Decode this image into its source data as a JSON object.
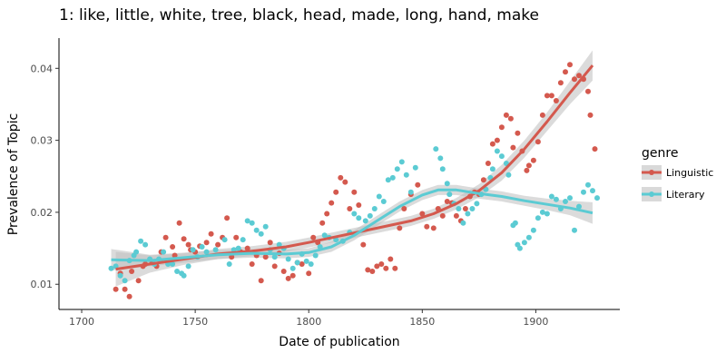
{
  "chart_data": {
    "type": "scatter",
    "title": "1: like, little, white, tree, black, head, made, long, hand, make",
    "xlabel": "Date of publication",
    "ylabel": "Prevalence of Topic",
    "xlim": [
      1690,
      1937
    ],
    "ylim": [
      0.0065,
      0.0442
    ],
    "x_ticks": [
      1700,
      1750,
      1800,
      1850,
      1900
    ],
    "y_ticks": [
      0.01,
      0.02,
      0.03,
      0.04
    ],
    "y_tick_labels": [
      "0.01",
      "0.02",
      "0.03",
      "0.04"
    ],
    "grid": false,
    "legend": {
      "title": "genre",
      "position": "right"
    },
    "colors": {
      "Linguistic": "#d4594e",
      "Literary": "#5bcbd3",
      "band": "#bdbdbd"
    },
    "series": [
      {
        "name": "Linguistic",
        "points": [
          [
            1715,
            0.0093
          ],
          [
            1717,
            0.0115
          ],
          [
            1719,
            0.0093
          ],
          [
            1721,
            0.0083
          ],
          [
            1722,
            0.0118
          ],
          [
            1725,
            0.0105
          ],
          [
            1727,
            0.0125
          ],
          [
            1728,
            0.0128
          ],
          [
            1731,
            0.013
          ],
          [
            1733,
            0.0125
          ],
          [
            1735,
            0.0145
          ],
          [
            1737,
            0.0165
          ],
          [
            1740,
            0.0152
          ],
          [
            1741,
            0.014
          ],
          [
            1743,
            0.0185
          ],
          [
            1745,
            0.0163
          ],
          [
            1747,
            0.0155
          ],
          [
            1748,
            0.0148
          ],
          [
            1750,
            0.0145
          ],
          [
            1752,
            0.0153
          ],
          [
            1755,
            0.0158
          ],
          [
            1757,
            0.017
          ],
          [
            1760,
            0.0155
          ],
          [
            1762,
            0.0165
          ],
          [
            1764,
            0.0192
          ],
          [
            1766,
            0.0138
          ],
          [
            1768,
            0.0165
          ],
          [
            1770,
            0.0145
          ],
          [
            1773,
            0.015
          ],
          [
            1775,
            0.0128
          ],
          [
            1777,
            0.014
          ],
          [
            1779,
            0.0105
          ],
          [
            1781,
            0.0138
          ],
          [
            1783,
            0.0158
          ],
          [
            1785,
            0.0125
          ],
          [
            1787,
            0.0143
          ],
          [
            1789,
            0.0118
          ],
          [
            1791,
            0.0108
          ],
          [
            1793,
            0.0112
          ],
          [
            1795,
            0.013
          ],
          [
            1797,
            0.0128
          ],
          [
            1800,
            0.0115
          ],
          [
            1802,
            0.0165
          ],
          [
            1804,
            0.0158
          ],
          [
            1806,
            0.0185
          ],
          [
            1808,
            0.0198
          ],
          [
            1810,
            0.0213
          ],
          [
            1812,
            0.0228
          ],
          [
            1814,
            0.0248
          ],
          [
            1816,
            0.0242
          ],
          [
            1818,
            0.0205
          ],
          [
            1820,
            0.0228
          ],
          [
            1822,
            0.021
          ],
          [
            1824,
            0.0155
          ],
          [
            1826,
            0.012
          ],
          [
            1828,
            0.0118
          ],
          [
            1830,
            0.0125
          ],
          [
            1832,
            0.0128
          ],
          [
            1834,
            0.0122
          ],
          [
            1836,
            0.0135
          ],
          [
            1838,
            0.0122
          ],
          [
            1840,
            0.0178
          ],
          [
            1842,
            0.0205
          ],
          [
            1845,
            0.0225
          ],
          [
            1848,
            0.0238
          ],
          [
            1850,
            0.0198
          ],
          [
            1852,
            0.018
          ],
          [
            1855,
            0.0178
          ],
          [
            1857,
            0.0205
          ],
          [
            1859,
            0.0195
          ],
          [
            1861,
            0.0215
          ],
          [
            1863,
            0.0213
          ],
          [
            1865,
            0.0195
          ],
          [
            1867,
            0.0188
          ],
          [
            1869,
            0.0205
          ],
          [
            1871,
            0.0222
          ],
          [
            1873,
            0.0228
          ],
          [
            1875,
            0.0225
          ],
          [
            1877,
            0.0245
          ],
          [
            1879,
            0.0268
          ],
          [
            1881,
            0.0295
          ],
          [
            1883,
            0.03
          ],
          [
            1885,
            0.0318
          ],
          [
            1887,
            0.0335
          ],
          [
            1889,
            0.033
          ],
          [
            1890,
            0.029
          ],
          [
            1892,
            0.031
          ],
          [
            1894,
            0.0285
          ],
          [
            1896,
            0.0258
          ],
          [
            1897,
            0.0265
          ],
          [
            1899,
            0.0272
          ],
          [
            1901,
            0.0298
          ],
          [
            1903,
            0.0335
          ],
          [
            1905,
            0.0362
          ],
          [
            1907,
            0.0362
          ],
          [
            1909,
            0.0355
          ],
          [
            1911,
            0.038
          ],
          [
            1913,
            0.0395
          ],
          [
            1915,
            0.0405
          ],
          [
            1917,
            0.0385
          ],
          [
            1919,
            0.039
          ],
          [
            1921,
            0.0385
          ],
          [
            1923,
            0.0368
          ],
          [
            1924,
            0.0335
          ],
          [
            1926,
            0.0288
          ]
        ],
        "smooth": [
          [
            1715,
            0.0121
          ],
          [
            1730,
            0.0128
          ],
          [
            1745,
            0.0135
          ],
          [
            1760,
            0.0142
          ],
          [
            1775,
            0.0146
          ],
          [
            1790,
            0.0152
          ],
          [
            1800,
            0.0158
          ],
          [
            1815,
            0.0168
          ],
          [
            1830,
            0.0178
          ],
          [
            1845,
            0.0188
          ],
          [
            1855,
            0.0198
          ],
          [
            1865,
            0.0212
          ],
          [
            1875,
            0.023
          ],
          [
            1885,
            0.0255
          ],
          [
            1895,
            0.0288
          ],
          [
            1905,
            0.0326
          ],
          [
            1915,
            0.0366
          ],
          [
            1925,
            0.0404
          ]
        ],
        "band_halfwidth": [
          0.0024,
          0.0012,
          0.0008,
          0.0007,
          0.0007,
          0.0007,
          0.0007,
          0.0007,
          0.0007,
          0.0007,
          0.0007,
          0.0008,
          0.0009,
          0.0011,
          0.0012,
          0.0013,
          0.0016,
          0.0021
        ]
      },
      {
        "name": "Literary",
        "points": [
          [
            1713,
            0.0122
          ],
          [
            1715,
            0.0125
          ],
          [
            1717,
            0.0112
          ],
          [
            1719,
            0.0105
          ],
          [
            1721,
            0.0133
          ],
          [
            1723,
            0.014
          ],
          [
            1724,
            0.0145
          ],
          [
            1726,
            0.016
          ],
          [
            1728,
            0.0155
          ],
          [
            1730,
            0.0135
          ],
          [
            1732,
            0.0128
          ],
          [
            1734,
            0.0135
          ],
          [
            1736,
            0.0145
          ],
          [
            1738,
            0.0128
          ],
          [
            1740,
            0.0128
          ],
          [
            1742,
            0.0118
          ],
          [
            1744,
            0.0115
          ],
          [
            1745,
            0.0112
          ],
          [
            1747,
            0.0125
          ],
          [
            1749,
            0.0148
          ],
          [
            1751,
            0.0138
          ],
          [
            1753,
            0.0152
          ],
          [
            1755,
            0.0145
          ],
          [
            1759,
            0.0148
          ],
          [
            1763,
            0.0162
          ],
          [
            1765,
            0.0128
          ],
          [
            1767,
            0.0148
          ],
          [
            1769,
            0.015
          ],
          [
            1771,
            0.0162
          ],
          [
            1773,
            0.0188
          ],
          [
            1775,
            0.0185
          ],
          [
            1777,
            0.0175
          ],
          [
            1779,
            0.017
          ],
          [
            1781,
            0.018
          ],
          [
            1783,
            0.0148
          ],
          [
            1785,
            0.0138
          ],
          [
            1787,
            0.0155
          ],
          [
            1789,
            0.015
          ],
          [
            1791,
            0.0135
          ],
          [
            1793,
            0.0122
          ],
          [
            1795,
            0.013
          ],
          [
            1797,
            0.0142
          ],
          [
            1799,
            0.0132
          ],
          [
            1801,
            0.0128
          ],
          [
            1803,
            0.014
          ],
          [
            1805,
            0.0152
          ],
          [
            1807,
            0.0168
          ],
          [
            1809,
            0.0165
          ],
          [
            1812,
            0.0162
          ],
          [
            1815,
            0.016
          ],
          [
            1818,
            0.0172
          ],
          [
            1820,
            0.0198
          ],
          [
            1822,
            0.0192
          ],
          [
            1825,
            0.0188
          ],
          [
            1827,
            0.0195
          ],
          [
            1829,
            0.0205
          ],
          [
            1831,
            0.0222
          ],
          [
            1833,
            0.0215
          ],
          [
            1835,
            0.0245
          ],
          [
            1837,
            0.0248
          ],
          [
            1839,
            0.026
          ],
          [
            1841,
            0.027
          ],
          [
            1843,
            0.0252
          ],
          [
            1845,
            0.0228
          ],
          [
            1847,
            0.0262
          ],
          [
            1856,
            0.0288
          ],
          [
            1858,
            0.0275
          ],
          [
            1859,
            0.026
          ],
          [
            1861,
            0.024
          ],
          [
            1862,
            0.0225
          ],
          [
            1864,
            0.0212
          ],
          [
            1866,
            0.0205
          ],
          [
            1868,
            0.0185
          ],
          [
            1870,
            0.0198
          ],
          [
            1872,
            0.0205
          ],
          [
            1874,
            0.0212
          ],
          [
            1876,
            0.0225
          ],
          [
            1878,
            0.0232
          ],
          [
            1880,
            0.0248
          ],
          [
            1881,
            0.026
          ],
          [
            1883,
            0.0285
          ],
          [
            1885,
            0.0278
          ],
          [
            1887,
            0.0268
          ],
          [
            1888,
            0.0252
          ],
          [
            1890,
            0.0182
          ],
          [
            1891,
            0.0185
          ],
          [
            1892,
            0.0155
          ],
          [
            1893,
            0.015
          ],
          [
            1895,
            0.0158
          ],
          [
            1897,
            0.0165
          ],
          [
            1899,
            0.0175
          ],
          [
            1901,
            0.0192
          ],
          [
            1903,
            0.02
          ],
          [
            1905,
            0.0198
          ],
          [
            1907,
            0.0222
          ],
          [
            1909,
            0.0218
          ],
          [
            1911,
            0.0205
          ],
          [
            1913,
            0.0215
          ],
          [
            1915,
            0.022
          ],
          [
            1917,
            0.0175
          ],
          [
            1919,
            0.0208
          ],
          [
            1921,
            0.0228
          ],
          [
            1923,
            0.0238
          ],
          [
            1925,
            0.023
          ],
          [
            1927,
            0.022
          ]
        ],
        "smooth": [
          [
            1713,
            0.0134
          ],
          [
            1730,
            0.0133
          ],
          [
            1745,
            0.0137
          ],
          [
            1760,
            0.0141
          ],
          [
            1775,
            0.0143
          ],
          [
            1790,
            0.0142
          ],
          [
            1800,
            0.0144
          ],
          [
            1810,
            0.0152
          ],
          [
            1820,
            0.0168
          ],
          [
            1830,
            0.0188
          ],
          [
            1840,
            0.0208
          ],
          [
            1850,
            0.0224
          ],
          [
            1857,
            0.0231
          ],
          [
            1865,
            0.0231
          ],
          [
            1875,
            0.0226
          ],
          [
            1885,
            0.0222
          ],
          [
            1895,
            0.0216
          ],
          [
            1905,
            0.0211
          ],
          [
            1915,
            0.0206
          ],
          [
            1925,
            0.0199
          ]
        ],
        "band_halfwidth": [
          0.0015,
          0.0008,
          0.0007,
          0.0006,
          0.0006,
          0.0006,
          0.0006,
          0.0007,
          0.0007,
          0.0007,
          0.0007,
          0.0007,
          0.0007,
          0.0007,
          0.0007,
          0.0007,
          0.0007,
          0.0008,
          0.001,
          0.0015
        ]
      }
    ]
  }
}
